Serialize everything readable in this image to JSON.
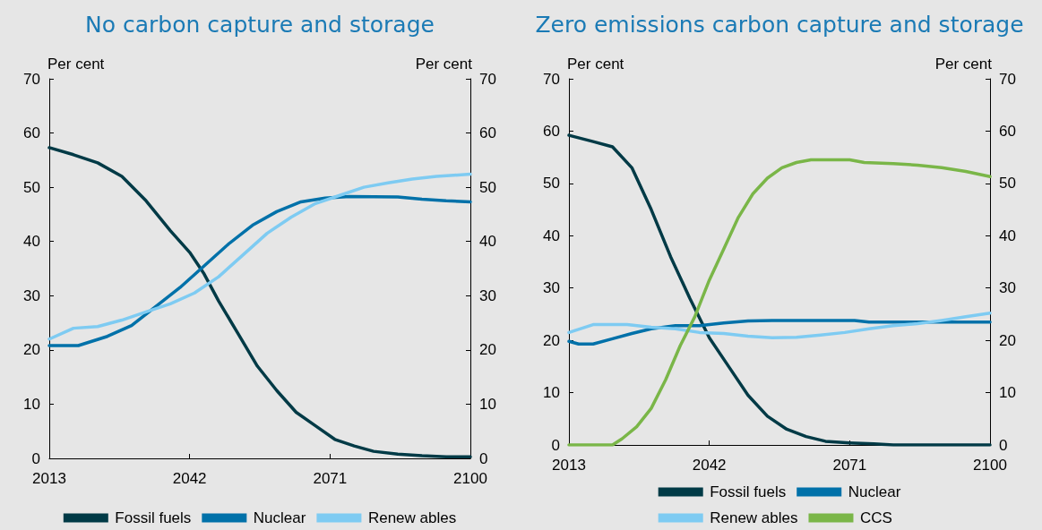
{
  "chart_data": [
    {
      "type": "line",
      "title": "No carbon capture and storage",
      "ylabel": "Per cent",
      "y2label": "Per cent",
      "xlim": [
        2013,
        2100
      ],
      "xticks": [
        2013,
        2042,
        2071,
        2100
      ],
      "ylim": [
        0,
        70
      ],
      "yticks": [
        0,
        10,
        20,
        30,
        40,
        50,
        60,
        70
      ],
      "y2lim": [
        0,
        70
      ],
      "y2ticks": [
        0,
        10,
        20,
        30,
        40,
        50,
        60,
        70
      ],
      "grid": false,
      "legend": "bottom",
      "series": [
        {
          "name": "Fossil fuels",
          "color": "#003a46",
          "x": [
            2013,
            2018,
            2023,
            2028,
            2033,
            2038,
            2042,
            2045,
            2048,
            2052,
            2056,
            2060,
            2064,
            2068,
            2072,
            2076,
            2080,
            2085,
            2090,
            2095,
            2100
          ],
          "values": [
            57.3,
            56,
            54.5,
            52,
            47.5,
            42,
            38,
            34,
            29,
            23,
            17,
            12.5,
            8.5,
            6,
            3.5,
            2.3,
            1.3,
            0.8,
            0.5,
            0.3,
            0.3
          ]
        },
        {
          "name": "Nuclear",
          "color": "#0071a9",
          "x": [
            2013,
            2019,
            2025,
            2030,
            2035,
            2040,
            2045,
            2050,
            2055,
            2060,
            2065,
            2070,
            2075,
            2085,
            2090,
            2095,
            2100
          ],
          "values": [
            20.8,
            20.8,
            22.5,
            24.5,
            28,
            31.5,
            35.5,
            39.5,
            43,
            45.5,
            47.3,
            48,
            48.3,
            48.2,
            47.8,
            47.5,
            47.3
          ]
        },
        {
          "name": "Renew ables",
          "color": "#7ecbf2",
          "x": [
            2013,
            2018,
            2023,
            2028,
            2033,
            2038,
            2043,
            2048,
            2053,
            2058,
            2063,
            2068,
            2073,
            2078,
            2083,
            2088,
            2093,
            2100
          ],
          "values": [
            22,
            24,
            24.3,
            25.5,
            27,
            28.5,
            30.5,
            33.5,
            37.5,
            41.5,
            44.5,
            47,
            48.5,
            50,
            50.8,
            51.5,
            52,
            52.4
          ]
        }
      ]
    },
    {
      "type": "line",
      "title": "Zero emissions carbon capture and storage",
      "ylabel": "Per cent",
      "y2label": "Per cent",
      "xlim": [
        2013,
        2100
      ],
      "xticks": [
        2013,
        2042,
        2071,
        2100
      ],
      "ylim": [
        0,
        70
      ],
      "yticks": [
        0,
        10,
        20,
        30,
        40,
        50,
        60,
        70
      ],
      "y2lim": [
        0,
        70
      ],
      "y2ticks": [
        0,
        10,
        20,
        30,
        40,
        50,
        60,
        70
      ],
      "grid": false,
      "legend": "bottom",
      "series": [
        {
          "name": "Fossil fuels",
          "color": "#003a46",
          "x": [
            2013,
            2018,
            2022,
            2026,
            2030,
            2034,
            2038,
            2042,
            2046,
            2050,
            2054,
            2058,
            2062,
            2066,
            2071,
            2076,
            2080,
            2100
          ],
          "values": [
            59.2,
            58,
            57,
            53,
            45,
            36,
            28,
            20.5,
            15,
            9.5,
            5.5,
            3,
            1.6,
            0.7,
            0.4,
            0.2,
            0,
            0
          ]
        },
        {
          "name": "Nuclear",
          "color": "#0071a9",
          "x": [
            2013,
            2015,
            2018,
            2022,
            2026,
            2030,
            2035,
            2040,
            2045,
            2050,
            2055,
            2072,
            2075,
            2100
          ],
          "values": [
            19.8,
            19.3,
            19.3,
            20.3,
            21.3,
            22.2,
            22.8,
            22.8,
            23.3,
            23.7,
            23.8,
            23.8,
            23.5,
            23.5
          ]
        },
        {
          "name": "Renew ables",
          "color": "#7ecbf2",
          "x": [
            2013,
            2018,
            2025,
            2030,
            2035,
            2040,
            2045,
            2050,
            2055,
            2060,
            2065,
            2070,
            2075,
            2080,
            2085,
            2090,
            2095,
            2100
          ],
          "values": [
            21.5,
            23,
            23,
            22.5,
            22.2,
            21.5,
            21.3,
            20.8,
            20.5,
            20.6,
            21,
            21.5,
            22.2,
            22.8,
            23.2,
            23.8,
            24.5,
            25.2
          ]
        },
        {
          "name": "CCS",
          "color": "#7ab648",
          "x": [
            2013,
            2022,
            2024,
            2027,
            2030,
            2033,
            2036,
            2039,
            2042,
            2045,
            2048,
            2051,
            2054,
            2057,
            2060,
            2063,
            2071,
            2074,
            2080,
            2085,
            2090,
            2095,
            2100
          ],
          "values": [
            0,
            0,
            1.2,
            3.5,
            7,
            12.5,
            19,
            24.5,
            31.5,
            37.5,
            43.5,
            48,
            51,
            53,
            54,
            54.5,
            54.5,
            54,
            53.8,
            53.5,
            53,
            52.3,
            51.3
          ]
        }
      ]
    }
  ]
}
